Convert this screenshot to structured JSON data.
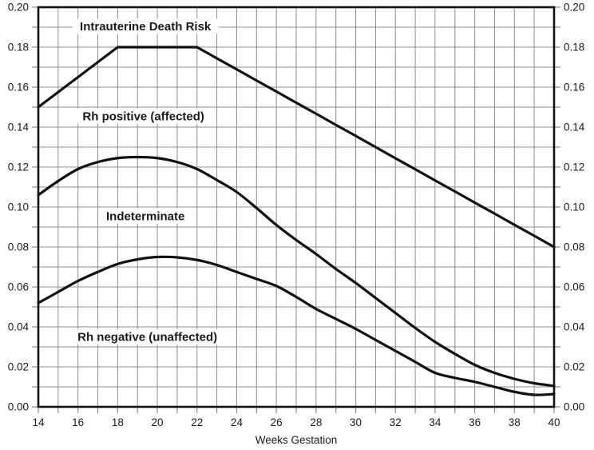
{
  "page": {
    "background": "#ffffff",
    "text_color": "#1a1a1a",
    "grid_color": "#8f8f8f",
    "axis_color": "#111111",
    "curve_color": "#111111"
  },
  "chart_data": {
    "type": "line",
    "title": "Intrauterine Death Risk",
    "xlabel": "Weeks Gestation",
    "ylabel": "",
    "xlim": [
      14,
      40
    ],
    "ylim": [
      0,
      0.2
    ],
    "x_minor_step": 1,
    "y_minor_step": 0.01,
    "grid": "on",
    "legend": "none (inline labels inside plot)",
    "y_axis_sides": [
      "left",
      "right"
    ],
    "x_ticks": {
      "values": [
        14,
        16,
        18,
        20,
        22,
        24,
        26,
        28,
        30,
        32,
        34,
        36,
        38,
        40
      ],
      "labels": [
        "14",
        "16",
        "18",
        "20",
        "22",
        "24",
        "26",
        "28",
        "30",
        "32",
        "34",
        "36",
        "38",
        "40"
      ]
    },
    "y_ticks": {
      "values": [
        0.0,
        0.02,
        0.04,
        0.06,
        0.08,
        0.1,
        0.12,
        0.14,
        0.16,
        0.18,
        0.2
      ],
      "labels": [
        "0.00",
        "0.02",
        "0.04",
        "0.06",
        "0.08",
        "0.10",
        "0.12",
        "0.14",
        "0.16",
        "0.18",
        "0.20"
      ]
    },
    "x": [
      14,
      15,
      16,
      17,
      18,
      19,
      20,
      21,
      22,
      23,
      24,
      25,
      26,
      27,
      28,
      29,
      30,
      31,
      32,
      33,
      34,
      35,
      36,
      37,
      38,
      39,
      40
    ],
    "series": [
      {
        "name": "Rh positive (affected)",
        "smooth": false,
        "values": [
          0.15,
          0.1575,
          0.165,
          0.1725,
          0.18,
          0.18,
          0.18,
          0.18,
          0.18,
          0.1744,
          0.1689,
          0.1633,
          0.1578,
          0.1522,
          0.1467,
          0.1411,
          0.1356,
          0.13,
          0.1244,
          0.1189,
          0.1133,
          0.1078,
          0.1022,
          0.0967,
          0.0911,
          0.0856,
          0.08
        ]
      },
      {
        "name": "Indeterminate",
        "smooth": true,
        "values": [
          0.106,
          0.113,
          0.119,
          0.1225,
          0.1245,
          0.125,
          0.1245,
          0.1225,
          0.119,
          0.1135,
          0.1075,
          0.0995,
          0.091,
          0.0835,
          0.0765,
          0.069,
          0.062,
          0.0545,
          0.047,
          0.0395,
          0.0325,
          0.0265,
          0.021,
          0.017,
          0.014,
          0.0118,
          0.0105
        ]
      },
      {
        "name": "Rh negative (unaffected)",
        "smooth": true,
        "values": [
          0.052,
          0.0575,
          0.063,
          0.0675,
          0.0715,
          0.0738,
          0.075,
          0.0748,
          0.0735,
          0.071,
          0.0675,
          0.064,
          0.0605,
          0.055,
          0.049,
          0.044,
          0.039,
          0.0335,
          0.028,
          0.0225,
          0.017,
          0.0145,
          0.0125,
          0.01,
          0.0075,
          0.006,
          0.0064
        ]
      }
    ],
    "annotations": [
      {
        "text": "Intrauterine Death Risk",
        "x": 19.4,
        "y": 0.1905
      },
      {
        "text": "Rh positive (affected)",
        "x": 19.3,
        "y": 0.1455
      },
      {
        "text": "Indeterminate",
        "x": 19.4,
        "y": 0.0955
      },
      {
        "text": "Rh negative (unaffected)",
        "x": 19.5,
        "y": 0.035
      }
    ]
  }
}
